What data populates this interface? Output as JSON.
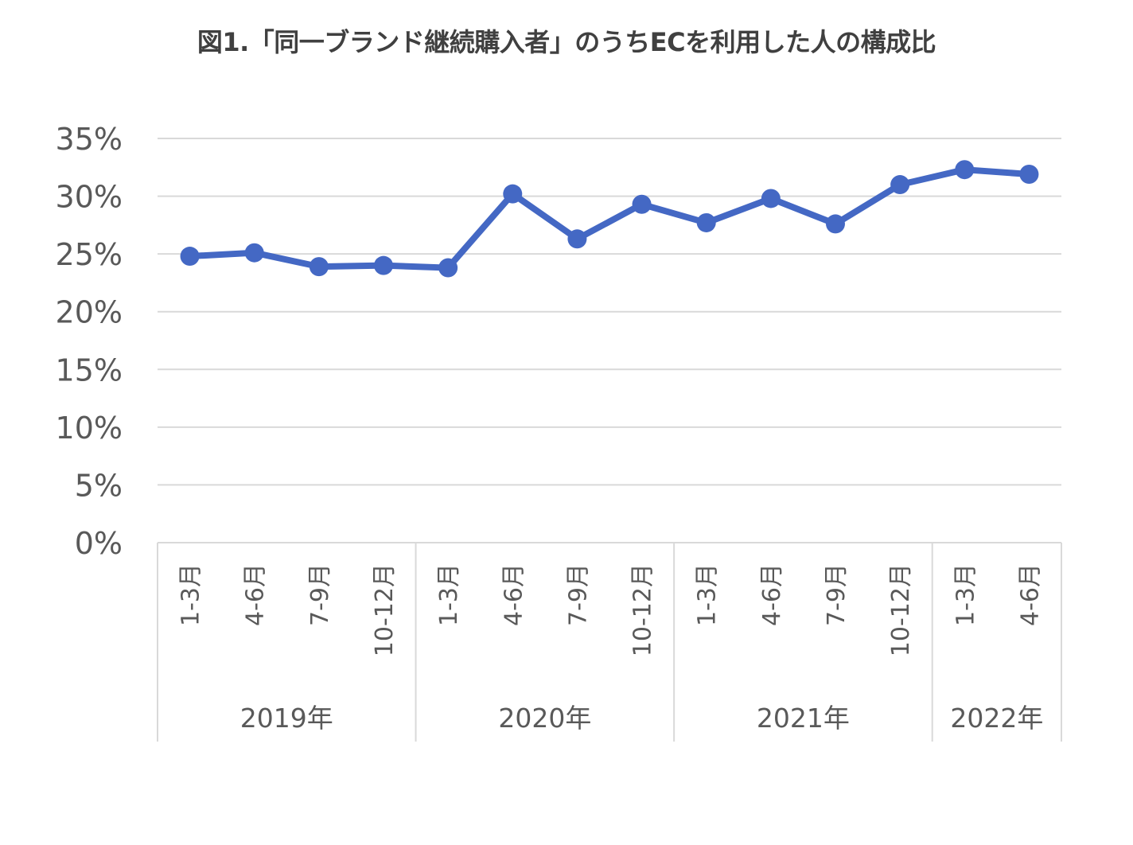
{
  "chart_data": {
    "type": "line",
    "title": "図1.「同一ブランド継続購入者」のうちECを利用した人の構成比",
    "xlabel": "",
    "ylabel": "",
    "ylim": [
      0,
      35
    ],
    "y_ticks": [
      "0%",
      "5%",
      "10%",
      "15%",
      "20%",
      "25%",
      "30%",
      "35%"
    ],
    "grid": true,
    "legend": "none",
    "categories": [
      "1-3月",
      "4-6月",
      "7-9月",
      "10-12月",
      "1-3月",
      "4-6月",
      "7-9月",
      "10-12月",
      "1-3月",
      "4-6月",
      "7-9月",
      "10-12月",
      "1-3月",
      "4-6月"
    ],
    "groups": [
      {
        "label": "2019年",
        "count": 4
      },
      {
        "label": "2020年",
        "count": 4
      },
      {
        "label": "2021年",
        "count": 4
      },
      {
        "label": "2022年",
        "count": 2
      }
    ],
    "series": [
      {
        "values": [
          24.8,
          25.1,
          23.9,
          24.0,
          23.8,
          30.2,
          26.3,
          29.3,
          27.7,
          29.8,
          27.6,
          31.0,
          32.3,
          31.9
        ]
      }
    ],
    "colors": {
      "line": "#4468C4",
      "grid": "#D9D9D9",
      "text": "#595959",
      "title": "#404040"
    }
  }
}
